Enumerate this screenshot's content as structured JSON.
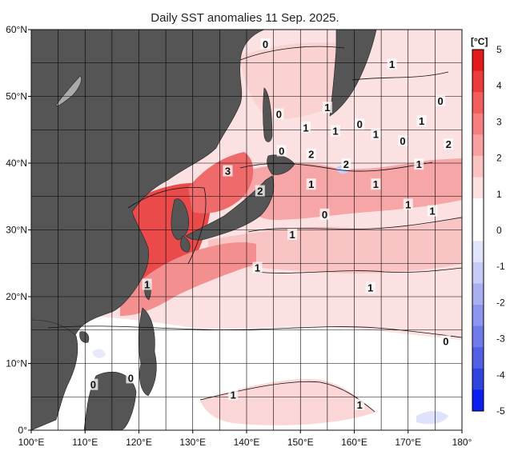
{
  "title": "Daily SST anomalies 11 Sep. 2025.",
  "axes": {
    "lon_labels": [
      "100°E",
      "110°E",
      "120°E",
      "130°E",
      "140°E",
      "150°E",
      "160°E",
      "170°E",
      "180°"
    ],
    "lat_labels": [
      "60°N",
      "50°N",
      "40°N",
      "30°N",
      "20°N",
      "10°N",
      "0°"
    ]
  },
  "colorbar": {
    "unit": "[°C]",
    "ticks": [
      "5",
      "4",
      "3",
      "2",
      "1",
      "0",
      "-1",
      "-2",
      "-3",
      "-4",
      "-5"
    ],
    "colors": [
      "#e31a1c",
      "#ec3b3b",
      "#f25d5d",
      "#f57f7f",
      "#f8a0a0",
      "#fbc2c2",
      "#fde0e0",
      "#ffffff",
      "#ffffff",
      "#e2e4fb",
      "#c6cbf7",
      "#a9b0f2",
      "#8c96ee",
      "#6f7be9",
      "#5261e4",
      "#2f43df",
      "#0a1ff0"
    ]
  },
  "map": {
    "land_color": "#555555",
    "ocean_base": "#fbe1e1",
    "lon_range": [
      100,
      180
    ],
    "lat_range": [
      0,
      60
    ]
  },
  "contour_labels": [
    {
      "text": "0",
      "lon": 143.5,
      "lat": 57.5
    },
    {
      "text": "1",
      "lon": 167.0,
      "lat": 54.5
    },
    {
      "text": "0",
      "lon": 176.0,
      "lat": 49.0
    },
    {
      "text": "0",
      "lon": 146.0,
      "lat": 47.0
    },
    {
      "text": "1",
      "lon": 155.0,
      "lat": 48.0
    },
    {
      "text": "1",
      "lon": 151.0,
      "lat": 45.0
    },
    {
      "text": "1",
      "lon": 156.5,
      "lat": 44.5
    },
    {
      "text": "0",
      "lon": 161.0,
      "lat": 45.5
    },
    {
      "text": "1",
      "lon": 164.0,
      "lat": 44.0
    },
    {
      "text": "1",
      "lon": 172.5,
      "lat": 46.0
    },
    {
      "text": "0",
      "lon": 169.0,
      "lat": 43.0
    },
    {
      "text": "2",
      "lon": 177.5,
      "lat": 42.5
    },
    {
      "text": "0",
      "lon": 146.5,
      "lat": 41.5
    },
    {
      "text": "2",
      "lon": 152.0,
      "lat": 41.0
    },
    {
      "text": "2",
      "lon": 158.5,
      "lat": 39.5
    },
    {
      "text": "1",
      "lon": 172.0,
      "lat": 39.5
    },
    {
      "text": "3",
      "lon": 136.5,
      "lat": 38.5
    },
    {
      "text": "1",
      "lon": 152.0,
      "lat": 36.5
    },
    {
      "text": "2",
      "lon": 142.5,
      "lat": 35.5
    },
    {
      "text": "1",
      "lon": 164.0,
      "lat": 36.5
    },
    {
      "text": "1",
      "lon": 170.0,
      "lat": 33.5
    },
    {
      "text": "1",
      "lon": 174.5,
      "lat": 32.5
    },
    {
      "text": "0",
      "lon": 154.5,
      "lat": 32.0
    },
    {
      "text": "1",
      "lon": 148.5,
      "lat": 29.0
    },
    {
      "text": "1",
      "lon": 142.0,
      "lat": 24.0
    },
    {
      "text": "1",
      "lon": 121.5,
      "lat": 21.5
    },
    {
      "text": "1",
      "lon": 163.0,
      "lat": 21.0
    },
    {
      "text": "0",
      "lon": 177.0,
      "lat": 13.0
    },
    {
      "text": "0",
      "lon": 118.5,
      "lat": 7.5
    },
    {
      "text": "0",
      "lon": 111.5,
      "lat": 6.5
    },
    {
      "text": "1",
      "lon": 137.5,
      "lat": 5.0
    },
    {
      "text": "1",
      "lon": 161.0,
      "lat": 3.5
    }
  ]
}
